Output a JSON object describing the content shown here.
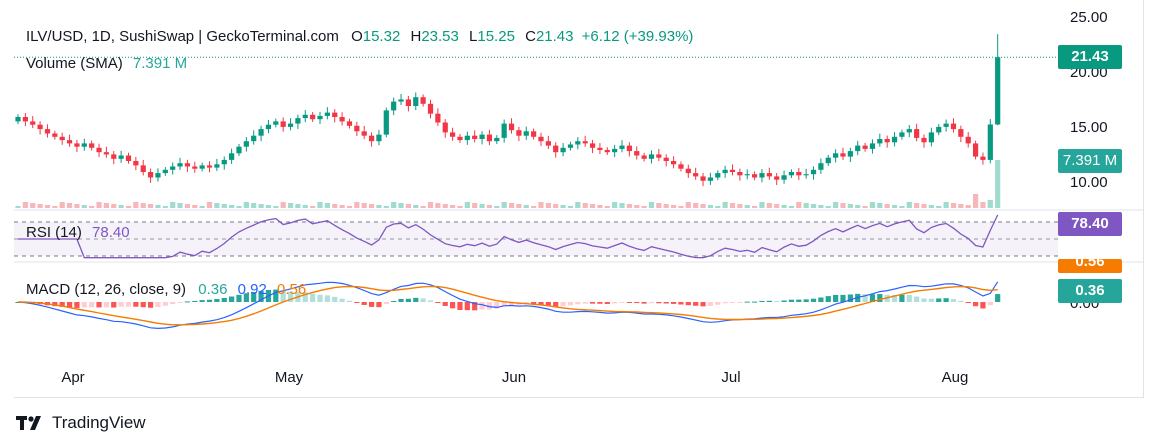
{
  "header": {
    "symbol": "ILV/USD, 1D, SushiSwap | GeckoTerminal.com",
    "open_label": "O",
    "open_value": "15.32",
    "high_label": "H",
    "high_value": "23.53",
    "low_label": "L",
    "low_value": "15.25",
    "close_label": "C",
    "close_value": "21.43",
    "change": "+6.12 (+39.93%)"
  },
  "volume_legend": {
    "label": "Volume (SMA)",
    "value": "7.391 M"
  },
  "rsi_legend": {
    "label": "RSI (14)",
    "value": "78.40"
  },
  "macd_legend": {
    "label": "MACD (12, 26, close, 9)",
    "hist": "0.36",
    "macd": "0.92",
    "signal": "0.56"
  },
  "price_axis": {
    "ticks": [
      "25.00",
      "20.00",
      "15.00",
      "10.00"
    ]
  },
  "macd_axis": {
    "zero_tick": "0.00"
  },
  "badges": {
    "price": "21.43",
    "volume": "7.391 M",
    "rsi": "78.40",
    "signal": "0.56",
    "hist": "0.36"
  },
  "x_axis": {
    "months": [
      "Apr",
      "May",
      "Jun",
      "Jul",
      "Aug"
    ]
  },
  "brand": {
    "name": "TradingView"
  },
  "colors": {
    "up": "#089981",
    "down": "#f23645",
    "rsi": "#7e57c2",
    "macd": "#2962ff",
    "signal": "#f57c00"
  },
  "chart_data": {
    "type": "candlestick",
    "price_axis": [
      10,
      25
    ],
    "last": {
      "open": 15.32,
      "high": 23.53,
      "low": 15.25,
      "close": 21.43
    },
    "closes": [
      16.0,
      15.6,
      15.3,
      14.9,
      14.5,
      14.2,
      13.9,
      13.6,
      13.3,
      13.6,
      13.2,
      12.8,
      12.6,
      12.2,
      12.5,
      12.0,
      11.6,
      11.0,
      10.5,
      10.9,
      11.2,
      11.5,
      11.8,
      11.5,
      11.3,
      11.6,
      11.4,
      11.7,
      12.1,
      12.7,
      13.3,
      13.8,
      14.3,
      14.9,
      15.3,
      15.6,
      15.1,
      15.4,
      15.9,
      16.2,
      15.8,
      16.1,
      16.4,
      16.0,
      15.6,
      15.2,
      14.7,
      14.3,
      13.8,
      14.4,
      16.6,
      17.4,
      17.6,
      17.0,
      17.8,
      17.2,
      16.3,
      15.5,
      14.6,
      14.2,
      13.9,
      14.3,
      14.0,
      14.4,
      13.8,
      14.1,
      15.4,
      14.8,
      14.3,
      14.7,
      14.2,
      13.8,
      13.4,
      12.8,
      13.2,
      13.5,
      13.8,
      13.6,
      13.2,
      13.0,
      12.8,
      13.1,
      13.4,
      12.9,
      12.5,
      12.2,
      12.6,
      12.3,
      12.0,
      11.7,
      11.3,
      10.9,
      10.6,
      10.2,
      10.5,
      10.9,
      11.2,
      11.0,
      10.7,
      10.8,
      10.5,
      10.9,
      10.6,
      10.3,
      10.7,
      11.0,
      10.7,
      10.8,
      11.2,
      11.8,
      12.3,
      12.7,
      12.4,
      12.9,
      13.4,
      13.1,
      13.6,
      14.0,
      13.7,
      14.2,
      14.6,
      14.9,
      14.1,
      13.7,
      14.6,
      15.1,
      15.4,
      14.9,
      14.2,
      13.6,
      12.4,
      12.1,
      15.32,
      21.43
    ],
    "volume_sma": "7.391 M",
    "rsi_last": 78.4,
    "macd_last": {
      "hist": 0.36,
      "macd": 0.92,
      "signal": 0.56
    }
  }
}
